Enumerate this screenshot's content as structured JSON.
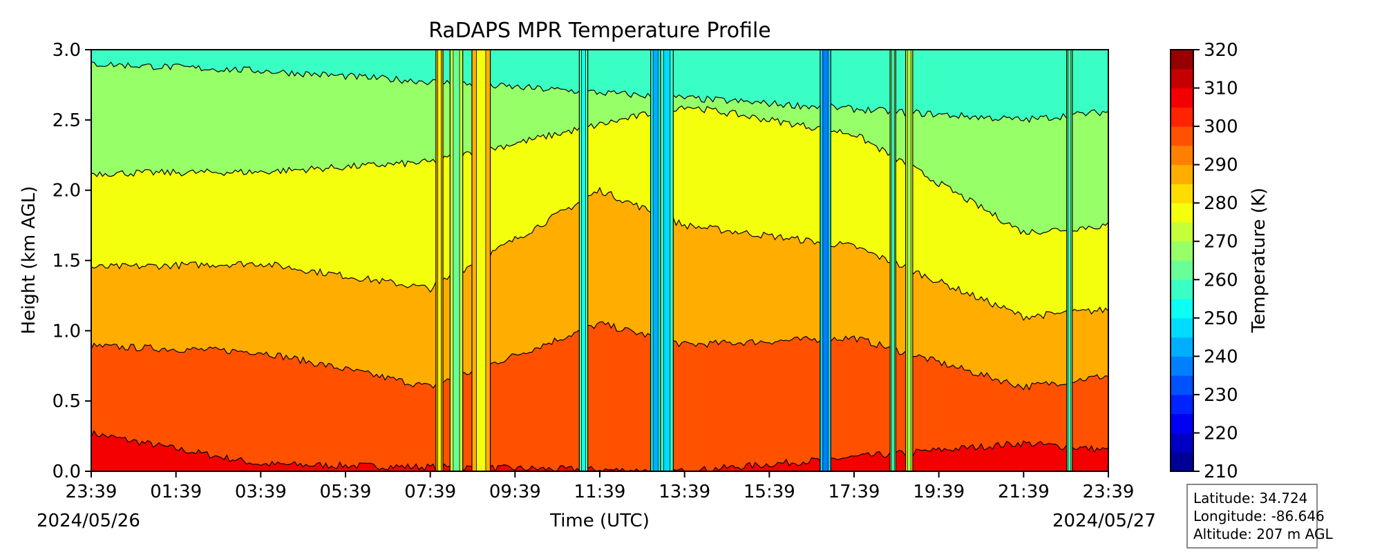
{
  "chart_data": {
    "type": "heatmap",
    "title": "RaDAPS MPR Temperature Profile",
    "xlabel": "Time (UTC)",
    "ylabel": "Height (km AGL)",
    "colorbar_label": "Temperature (K)",
    "colormap": "jet",
    "ylim": [
      0.0,
      3.0
    ],
    "yticks": [
      "0.0",
      "0.5",
      "1.0",
      "1.5",
      "2.0",
      "2.5",
      "3.0"
    ],
    "xticks": [
      "23:39",
      "01:39",
      "03:39",
      "05:39",
      "07:39",
      "09:39",
      "11:39",
      "13:39",
      "15:39",
      "17:39",
      "19:39",
      "21:39",
      "23:39"
    ],
    "start_date": "2024/05/26",
    "end_date": "2024/05/27",
    "colorbar_range": [
      210,
      320
    ],
    "colorbar_step": 5,
    "colorbar_ticks": [
      "210",
      "220",
      "230",
      "240",
      "250",
      "260",
      "270",
      "280",
      "290",
      "300",
      "310",
      "320"
    ],
    "contour_interval_K": 10,
    "contour_base_heights_km": {
      "300": 0.25,
      "290": 0.85,
      "280": 1.45,
      "270": 2.1,
      "260": 2.9
    },
    "contour_evolution_km": [
      {
        "time": "23:39",
        "300": 0.27,
        "290": 0.89,
        "280": 1.45,
        "270": 2.12,
        "260": 2.9
      },
      {
        "time": "03:39",
        "300": 0.05,
        "290": 0.85,
        "280": 1.48,
        "270": 2.13,
        "260": 2.85
      },
      {
        "time": "07:39",
        "290": 0.6,
        "280": 1.3,
        "270": 2.2
      },
      {
        "time": "11:39",
        "290": 1.05,
        "280": 2.0
      },
      {
        "time": "13:39",
        "300": 0.0,
        "290": 0.9,
        "280": 1.75,
        "270": 2.6
      },
      {
        "time": "17:39",
        "300": 0.1,
        "290": 0.95,
        "280": 1.6,
        "270": 2.4
      },
      {
        "time": "21:39",
        "300": 0.2,
        "290": 0.6,
        "280": 1.1,
        "270": 1.7,
        "260": 2.5
      },
      {
        "time": "23:39",
        "300": 0.15,
        "290": 0.68,
        "280": 1.15,
        "270": 1.75,
        "260": 2.56
      }
    ],
    "cold_spikes": [
      {
        "start": "07:47",
        "end": "07:57",
        "min_temp": 285
      },
      {
        "start": "08:07",
        "end": "08:25",
        "min_temp": 270
      },
      {
        "start": "08:38",
        "end": "09:04",
        "min_temp": 285
      },
      {
        "start": "11:10",
        "end": "11:22",
        "min_temp": 260
      },
      {
        "start": "12:51",
        "end": "13:05",
        "min_temp": 250
      },
      {
        "start": "13:05",
        "end": "13:23",
        "min_temp": 255
      },
      {
        "start": "16:51",
        "end": "17:06",
        "min_temp": 245
      },
      {
        "start": "18:30",
        "end": "18:38",
        "min_temp": 265
      },
      {
        "start": "18:52",
        "end": "19:02",
        "min_temp": 275
      },
      {
        "start": "22:40",
        "end": "22:48",
        "min_temp": 265
      }
    ]
  },
  "info_box": {
    "latitude": "Latitude: 34.724",
    "longitude": "Longitude: -86.646",
    "altitude": "Altitude: 207 m AGL"
  }
}
